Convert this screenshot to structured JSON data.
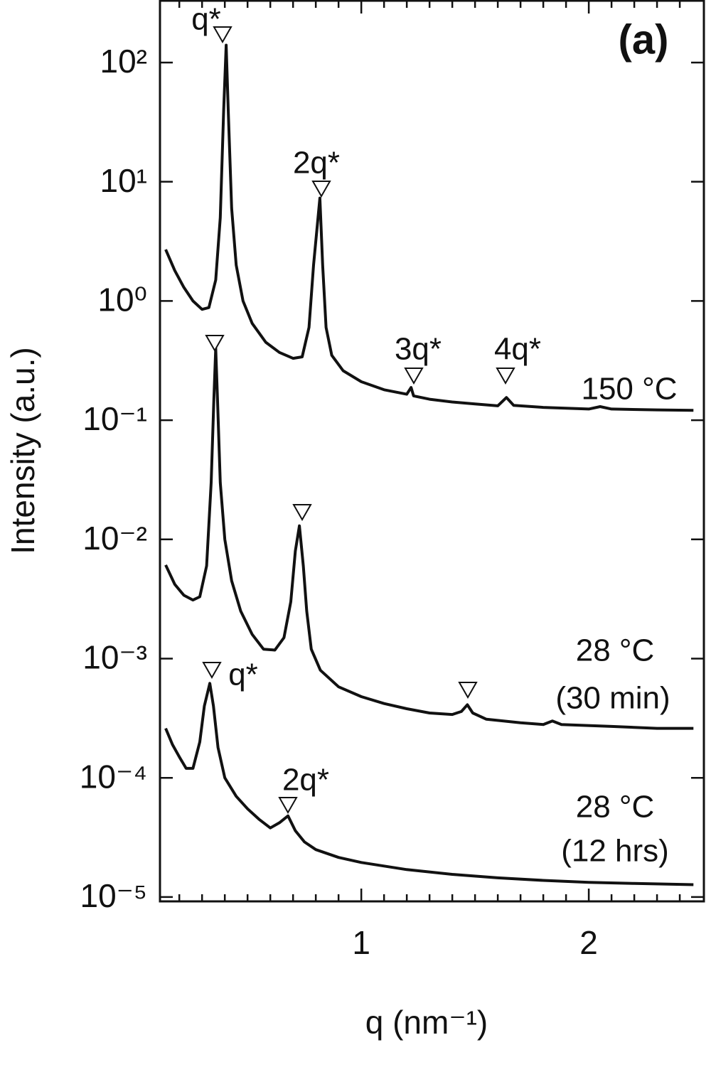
{
  "chart_data": {
    "type": "line",
    "panel_label": "(a)",
    "xlabel": "q (nm⁻¹)",
    "ylabel": "Intensity (a.u.)",
    "xlim": [
      0.115,
      2.506
    ],
    "xticks": [
      1,
      2
    ],
    "xminorticks": [
      0.2,
      0.3,
      0.4,
      0.5,
      0.6,
      0.7,
      0.8,
      0.9,
      1.1,
      1.2,
      1.3,
      1.4,
      1.5,
      1.6,
      1.7,
      1.8,
      1.9,
      2.1,
      2.2,
      2.3,
      2.4
    ],
    "ylim": [
      9.2e-06,
      330
    ],
    "ylog": true,
    "yticks": [
      {
        "value": 1e-05,
        "label": "10⁻⁵"
      },
      {
        "value": 0.0001,
        "label": "10⁻⁴"
      },
      {
        "value": 0.001,
        "label": "10⁻³"
      },
      {
        "value": 0.01,
        "label": "10⁻²"
      },
      {
        "value": 0.1,
        "label": "10⁻¹"
      },
      {
        "value": 1,
        "label": "10⁰"
      },
      {
        "value": 10,
        "label": "10¹"
      },
      {
        "value": 100,
        "label": "10²"
      }
    ],
    "series": [
      {
        "color": "#111111",
        "x": [
          0.14,
          0.18,
          0.22,
          0.26,
          0.3,
          0.33,
          0.36,
          0.38,
          0.395,
          0.406,
          0.415,
          0.43,
          0.45,
          0.48,
          0.52,
          0.58,
          0.64,
          0.7,
          0.74,
          0.77,
          0.79,
          0.818,
          0.83,
          0.845,
          0.87,
          0.92,
          1.0,
          1.1,
          1.2,
          1.219,
          1.23,
          1.3,
          1.4,
          1.5,
          1.6,
          1.638,
          1.67,
          1.8,
          1.9,
          2.0,
          2.05,
          2.1,
          2.3,
          2.46
        ],
        "values": [
          2.7,
          1.8,
          1.3,
          1.0,
          0.85,
          0.88,
          1.5,
          5,
          40,
          140,
          40,
          6,
          2.0,
          1.0,
          0.65,
          0.45,
          0.37,
          0.33,
          0.34,
          0.6,
          2,
          7.3,
          2,
          0.6,
          0.35,
          0.26,
          0.21,
          0.18,
          0.165,
          0.188,
          0.16,
          0.15,
          0.142,
          0.137,
          0.132,
          0.155,
          0.133,
          0.128,
          0.126,
          0.124,
          0.13,
          0.124,
          0.122,
          0.121
        ]
      },
      {
        "color": "#111111",
        "x": [
          0.14,
          0.18,
          0.22,
          0.26,
          0.29,
          0.32,
          0.34,
          0.352,
          0.36,
          0.368,
          0.38,
          0.4,
          0.43,
          0.47,
          0.52,
          0.57,
          0.62,
          0.66,
          0.69,
          0.71,
          0.728,
          0.745,
          0.76,
          0.78,
          0.82,
          0.9,
          1.0,
          1.1,
          1.2,
          1.3,
          1.4,
          1.44,
          1.466,
          1.49,
          1.55,
          1.7,
          1.8,
          1.84,
          1.88,
          2.1,
          2.3,
          2.46
        ],
        "values": [
          0.0061,
          0.0042,
          0.0034,
          0.0031,
          0.0033,
          0.006,
          0.03,
          0.15,
          0.4,
          0.15,
          0.03,
          0.01,
          0.0045,
          0.0025,
          0.0016,
          0.0012,
          0.00118,
          0.0015,
          0.003,
          0.008,
          0.013,
          0.006,
          0.0025,
          0.0012,
          0.0008,
          0.00058,
          0.00048,
          0.00042,
          0.00038,
          0.00035,
          0.00034,
          0.00036,
          0.00041,
          0.00035,
          0.00031,
          0.00029,
          0.00028,
          0.0003,
          0.00028,
          0.00027,
          0.00026,
          0.00026
        ]
      },
      {
        "color": "#111111",
        "x": [
          0.14,
          0.17,
          0.2,
          0.23,
          0.26,
          0.29,
          0.31,
          0.334,
          0.35,
          0.37,
          0.4,
          0.45,
          0.5,
          0.55,
          0.6,
          0.64,
          0.678,
          0.71,
          0.75,
          0.8,
          0.9,
          1.0,
          1.2,
          1.4,
          1.6,
          1.8,
          2.0,
          2.2,
          2.46
        ],
        "values": [
          0.00026,
          0.00019,
          0.00015,
          0.00012,
          0.00012,
          0.0002,
          0.0004,
          0.00062,
          0.0004,
          0.00018,
          0.0001,
          7e-05,
          5.5e-05,
          4.5e-05,
          3.8e-05,
          4.2e-05,
          4.8e-05,
          3.6e-05,
          2.9e-05,
          2.5e-05,
          2.15e-05,
          1.95e-05,
          1.7e-05,
          1.55e-05,
          1.45e-05,
          1.38e-05,
          1.33e-05,
          1.3e-05,
          1.27e-05
        ]
      }
    ],
    "annotations": [
      "q*",
      "2q*",
      "3q*",
      "4q*",
      "150 °C",
      "28 °C",
      "(30 min)",
      "q*",
      "2q*",
      "28 °C",
      "(12 hrs)"
    ]
  }
}
